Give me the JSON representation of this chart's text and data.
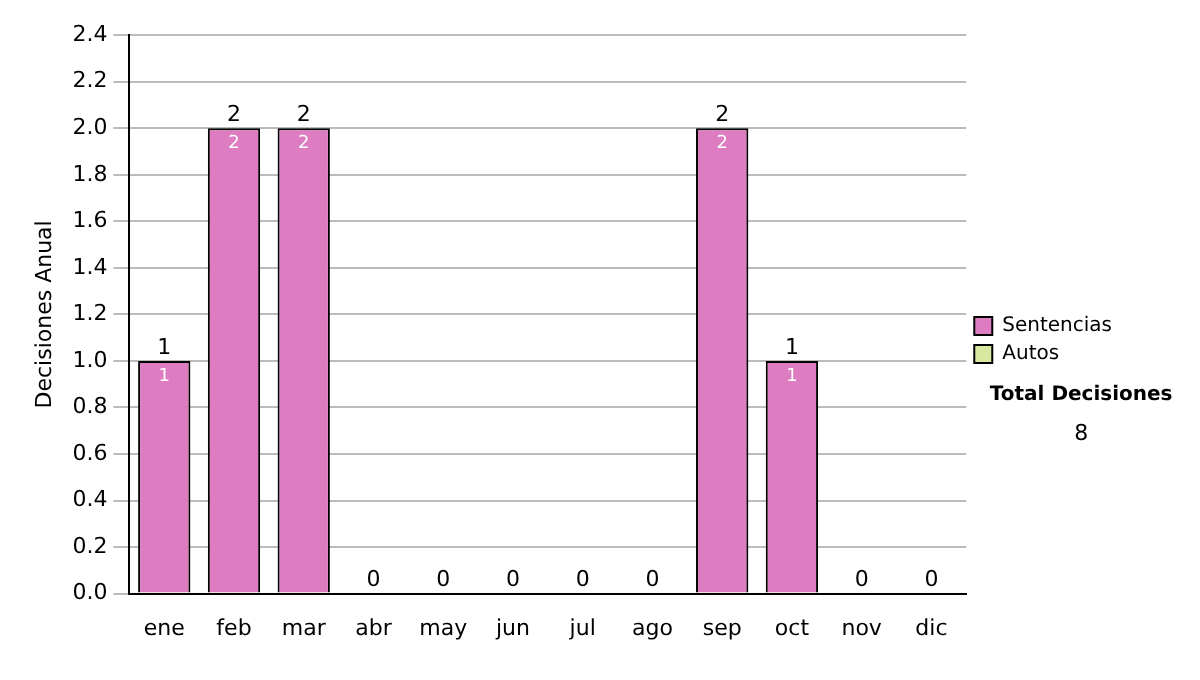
{
  "chart_data": {
    "type": "bar",
    "stacked": true,
    "ylabel": "Decisiones Anual",
    "categories": [
      "ene",
      "feb",
      "mar",
      "abr",
      "may",
      "jun",
      "jul",
      "ago",
      "sep",
      "oct",
      "nov",
      "dic"
    ],
    "series": [
      {
        "name": "Sentencias",
        "color": "#dd7cc0",
        "values": [
          1,
          2,
          2,
          0,
          0,
          0,
          0,
          0,
          2,
          1,
          0,
          0
        ],
        "value_labels": [
          "1",
          "2",
          "2",
          null,
          null,
          null,
          null,
          null,
          "2",
          "1",
          null,
          null
        ]
      },
      {
        "name": "Autos",
        "color": "#d8e8a0",
        "values": [
          0,
          0,
          0,
          0,
          0,
          0,
          0,
          0,
          0,
          0,
          0,
          0
        ]
      }
    ],
    "totals": [
      "1",
      "2",
      "2",
      "0",
      "0",
      "0",
      "0",
      "0",
      "2",
      "1",
      "0",
      "0"
    ],
    "ylim": [
      0,
      2.4
    ],
    "yticks": [
      {
        "value": 0,
        "label": "0.0"
      },
      0.2,
      0.4,
      0.6,
      0.8,
      {
        "value": 1,
        "label": "1.0"
      },
      1.2,
      1.4,
      1.6,
      1.8,
      {
        "value": 2,
        "label": "2.0"
      },
      2.2,
      2.4
    ],
    "grid": "y",
    "legend": "right",
    "annotations": [
      "Total Decisiones",
      "8"
    ]
  }
}
